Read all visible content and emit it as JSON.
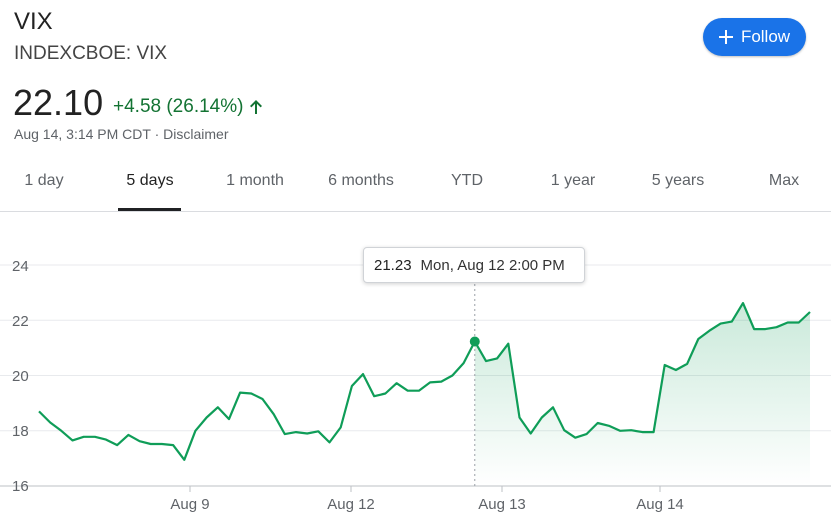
{
  "header": {
    "ticker": "VIX",
    "exchange": "INDEXCBOE: VIX",
    "follow_label": "Follow",
    "price": "22.10",
    "change": "+4.58 (26.14%)",
    "updated": "Aug 14, 3:14 PM CDT",
    "separator": "·",
    "disclaimer": "Disclaimer",
    "accent_color": "#1a73e8",
    "positive_color": "#137333"
  },
  "tabs": [
    {
      "label": "1 day",
      "active": false
    },
    {
      "label": "5 days",
      "active": true
    },
    {
      "label": "1 month",
      "active": false
    },
    {
      "label": "6 months",
      "active": false
    },
    {
      "label": "YTD",
      "active": false
    },
    {
      "label": "1 year",
      "active": false
    },
    {
      "label": "5 years",
      "active": false
    },
    {
      "label": "Max",
      "active": false
    }
  ],
  "tooltip": {
    "value": "21.23",
    "time": "Mon, Aug 12 2:00 PM"
  },
  "chart_data": {
    "type": "area",
    "y_ticks": [
      "24",
      "22",
      "20",
      "18",
      "16"
    ],
    "ylim": [
      16,
      24.7
    ],
    "x_ticks": [
      "Aug 9",
      "Aug 12",
      "Aug 13",
      "Aug 14"
    ],
    "line_color": "#0f9d58",
    "grid": true,
    "values": [
      18.7,
      18.3,
      18.0,
      17.65,
      17.78,
      17.78,
      17.68,
      17.48,
      17.85,
      17.62,
      17.52,
      17.52,
      17.48,
      16.95,
      18.0,
      18.48,
      18.85,
      18.42,
      19.38,
      19.35,
      19.15,
      18.6,
      17.88,
      17.95,
      17.9,
      17.98,
      17.58,
      18.12,
      19.62,
      20.05,
      19.25,
      19.35,
      19.72,
      19.45,
      19.45,
      19.75,
      19.78,
      20.0,
      20.45,
      21.23,
      20.52,
      20.62,
      21.15,
      18.48,
      17.9,
      18.48,
      18.85,
      18.02,
      17.75,
      17.88,
      18.28,
      18.18,
      18.0,
      18.02,
      17.95,
      17.95,
      20.38,
      20.2,
      20.42,
      21.32,
      21.62,
      21.88,
      21.95,
      22.62,
      21.68,
      21.68,
      21.75,
      21.92,
      21.92,
      22.3
    ],
    "highlight_index": 39
  }
}
